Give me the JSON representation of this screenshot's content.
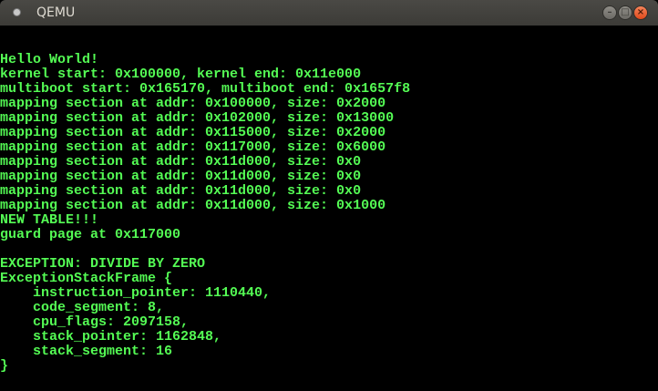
{
  "window": {
    "title": "QEMU",
    "icon": "app-indicator-icon",
    "buttons": [
      "minimize",
      "maximize",
      "close"
    ]
  },
  "colors": {
    "text": "#54fc54",
    "background": "#000000",
    "close_button": "#e95420"
  },
  "console": {
    "lines": [
      "Hello World!",
      "kernel start: 0x100000, kernel end: 0x11e000",
      "multiboot start: 0x165170, multiboot end: 0x1657f8",
      "mapping section at addr: 0x100000, size: 0x2000",
      "mapping section at addr: 0x102000, size: 0x13000",
      "mapping section at addr: 0x115000, size: 0x2000",
      "mapping section at addr: 0x117000, size: 0x6000",
      "mapping section at addr: 0x11d000, size: 0x0",
      "mapping section at addr: 0x11d000, size: 0x0",
      "mapping section at addr: 0x11d000, size: 0x0",
      "mapping section at addr: 0x11d000, size: 0x1000",
      "NEW TABLE!!!",
      "guard page at 0x117000",
      "",
      "EXCEPTION: DIVIDE BY ZERO",
      "ExceptionStackFrame {",
      "    instruction_pointer: 1110440,",
      "    code_segment: 8,",
      "    cpu_flags: 2097158,",
      "    stack_pointer: 1162848,",
      "    stack_segment: 16",
      "}"
    ]
  }
}
